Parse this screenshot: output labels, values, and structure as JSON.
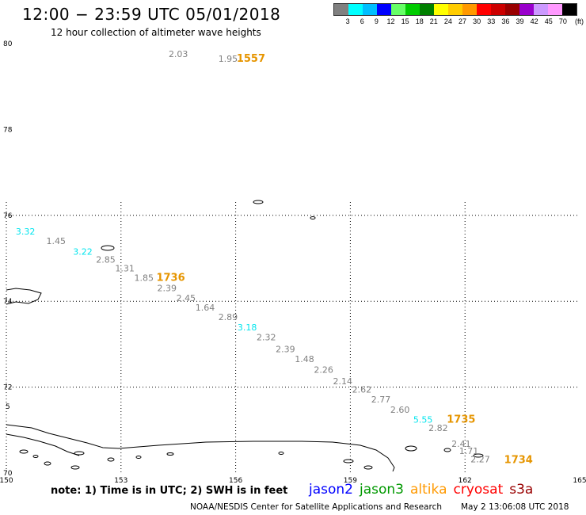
{
  "header": {
    "title": "12:00 − 23:59 UTC 05/01/2018",
    "subtitle": "12 hour collection of altimeter wave heights"
  },
  "legend": {
    "colors": [
      "#808080",
      "#00ffff",
      "#00bfff",
      "#0000ff",
      "#66ff66",
      "#00cc00",
      "#008000",
      "#ffff00",
      "#ffcc00",
      "#ff9900",
      "#ff0000",
      "#cc0000",
      "#990000",
      "#9900cc",
      "#cc99ff",
      "#ff99ff",
      "#000000"
    ],
    "ticks": [
      "3",
      "6",
      "9",
      "12",
      "15",
      "18",
      "21",
      "24",
      "27",
      "30",
      "33",
      "36",
      "39",
      "42",
      "45",
      "70"
    ],
    "unit": "(ft)"
  },
  "axes": {
    "lon_labels": [
      "150",
      "153",
      "156",
      "159",
      "162",
      "165"
    ],
    "lat_labels": [
      "80",
      "78",
      "76",
      "74",
      "72",
      "70"
    ],
    "lat_small": "5"
  },
  "observations": [
    {
      "value": "2.03",
      "lon": 154.5,
      "lat": 79.69,
      "color": "#808080"
    },
    {
      "value": "1.95",
      "lon": 155.8,
      "lat": 79.58,
      "color": "#808080"
    },
    {
      "value": "3.32",
      "lon": 150.5,
      "lat": 75.55,
      "color": "#00e5ee"
    },
    {
      "value": "1.45",
      "lon": 151.3,
      "lat": 75.33,
      "color": "#808080"
    },
    {
      "value": "3.22",
      "lon": 152.0,
      "lat": 75.08,
      "color": "#00e5ee"
    },
    {
      "value": "2.85",
      "lon": 152.6,
      "lat": 74.9,
      "color": "#808080"
    },
    {
      "value": "1.31",
      "lon": 153.1,
      "lat": 74.7,
      "color": "#808080"
    },
    {
      "value": "1.85",
      "lon": 153.6,
      "lat": 74.47,
      "color": "#808080"
    },
    {
      "value": "2.39",
      "lon": 154.2,
      "lat": 74.23,
      "color": "#808080"
    },
    {
      "value": "2.45",
      "lon": 154.7,
      "lat": 74.0,
      "color": "#808080"
    },
    {
      "value": "1.64",
      "lon": 155.2,
      "lat": 73.78,
      "color": "#808080"
    },
    {
      "value": "2.89",
      "lon": 155.8,
      "lat": 73.56,
      "color": "#808080"
    },
    {
      "value": "3.18",
      "lon": 156.3,
      "lat": 73.32,
      "color": "#00e5ee"
    },
    {
      "value": "2.32",
      "lon": 156.8,
      "lat": 73.09,
      "color": "#808080"
    },
    {
      "value": "2.39",
      "lon": 157.3,
      "lat": 72.81,
      "color": "#808080"
    },
    {
      "value": "1.48",
      "lon": 157.8,
      "lat": 72.58,
      "color": "#808080"
    },
    {
      "value": "2.26",
      "lon": 158.3,
      "lat": 72.33,
      "color": "#808080"
    },
    {
      "value": "2.14",
      "lon": 158.8,
      "lat": 72.07,
      "color": "#808080"
    },
    {
      "value": "2.62",
      "lon": 159.3,
      "lat": 71.87,
      "color": "#808080"
    },
    {
      "value": "2.77",
      "lon": 159.8,
      "lat": 71.64,
      "color": "#808080"
    },
    {
      "value": "2.60",
      "lon": 160.3,
      "lat": 71.4,
      "color": "#808080"
    },
    {
      "value": "5.55",
      "lon": 160.9,
      "lat": 71.17,
      "color": "#00e5ee"
    },
    {
      "value": "2.82",
      "lon": 161.3,
      "lat": 70.98,
      "color": "#808080"
    },
    {
      "value": "2.41",
      "lon": 161.9,
      "lat": 70.61,
      "color": "#808080"
    },
    {
      "value": "1.71",
      "lon": 162.1,
      "lat": 70.44,
      "color": "#808080"
    },
    {
      "value": "2.27",
      "lon": 162.4,
      "lat": 70.25,
      "color": "#808080"
    }
  ],
  "pass_times": [
    {
      "label": "1557",
      "lon": 156.4,
      "lat": 79.58,
      "color": "#e69500"
    },
    {
      "label": "1736",
      "lon": 154.3,
      "lat": 74.47,
      "color": "#e69500"
    },
    {
      "label": "1735",
      "lon": 161.9,
      "lat": 71.17,
      "color": "#e69500"
    },
    {
      "label": "1734",
      "lon": 163.4,
      "lat": 70.23,
      "color": "#e69500"
    }
  ],
  "note": "note:  1) Time is in UTC;  2) SWH is in feet",
  "satellites": [
    {
      "name": "jason2",
      "color": "#0000ff"
    },
    {
      "name": "jason3",
      "color": "#009900"
    },
    {
      "name": "altika",
      "color": "#ff9900"
    },
    {
      "name": "cryosat",
      "color": "#ff0000"
    },
    {
      "name": "s3a",
      "color": "#990000"
    }
  ],
  "footer": {
    "credit": "NOAA/NESDIS Center for Satellite Applications and Research",
    "timestamp": "May  2 13:06:08 UTC 2018"
  }
}
